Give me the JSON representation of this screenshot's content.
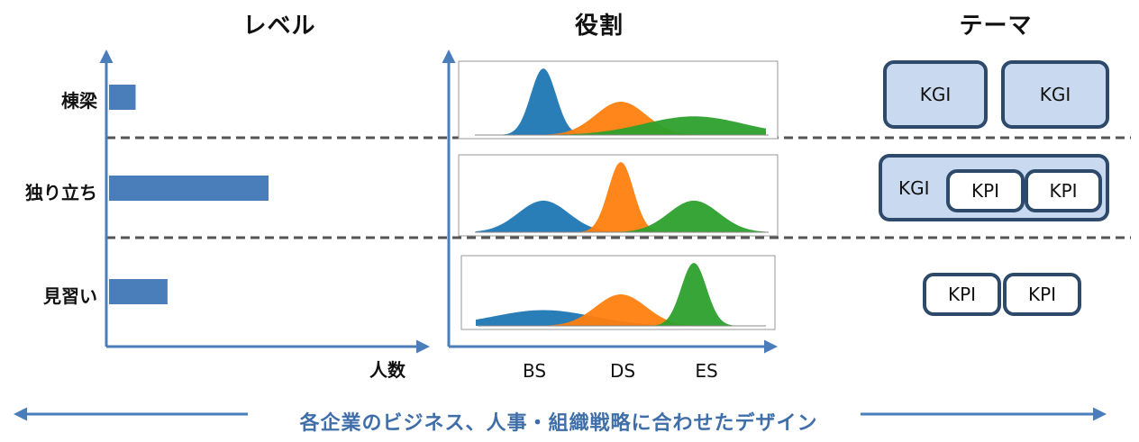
{
  "headings": {
    "level": "レベル",
    "role": "役割",
    "theme": "テーマ"
  },
  "levels": [
    {
      "label": "棟梁",
      "value": 1
    },
    {
      "label": "独り立ち",
      "value": 6
    },
    {
      "label": "見習い",
      "value": 2.2
    }
  ],
  "level_xaxis_label": "人数",
  "roles": [
    "BS",
    "DS",
    "ES"
  ],
  "role_colors": {
    "BS": "#1f77b4",
    "DS": "#ff7f0e",
    "ES": "#2ca02c"
  },
  "theme": {
    "row1": [
      "KGI",
      "KGI"
    ],
    "row2": {
      "outer": "KGI",
      "inner": [
        "KPI",
        "KPI"
      ]
    },
    "row3": [
      "KPI",
      "KPI"
    ]
  },
  "bottom_text": "各企業のビジネス、人事・組織戦略に合わせたデザイン",
  "colors": {
    "axis": "#4a7ebb",
    "bar": "#4a7ebb",
    "box_border": "#2e4a6b",
    "box_fill": "#c9daf0",
    "dashed": "#555555"
  },
  "chart_data": [
    {
      "type": "bar",
      "orientation": "horizontal",
      "categories": [
        "棟梁",
        "独り立ち",
        "見習い"
      ],
      "values": [
        1,
        6,
        2.2
      ],
      "xlabel": "人数",
      "title": "レベル"
    },
    {
      "type": "area",
      "title": "役割",
      "panel": "棟梁",
      "x": [
        "BS",
        "DS",
        "ES"
      ],
      "series": [
        {
          "name": "BS",
          "mean": "BS",
          "peak": 1.0,
          "spread": "narrow"
        },
        {
          "name": "DS",
          "mean": "DS",
          "peak": 0.5,
          "spread": "medium"
        },
        {
          "name": "ES",
          "mean": "ES",
          "peak": 0.28,
          "spread": "wide"
        }
      ]
    },
    {
      "type": "area",
      "panel": "独り立ち",
      "x": [
        "BS",
        "DS",
        "ES"
      ],
      "series": [
        {
          "name": "BS",
          "mean": "BS",
          "peak": 0.45,
          "spread": "medium"
        },
        {
          "name": "DS",
          "mean": "DS",
          "peak": 1.0,
          "spread": "narrow"
        },
        {
          "name": "ES",
          "mean": "ES",
          "peak": 0.45,
          "spread": "medium"
        }
      ]
    },
    {
      "type": "area",
      "panel": "見習い",
      "x": [
        "BS",
        "DS",
        "ES"
      ],
      "series": [
        {
          "name": "BS",
          "mean": "BS",
          "peak": 0.25,
          "spread": "wide"
        },
        {
          "name": "DS",
          "mean": "DS",
          "peak": 0.5,
          "spread": "medium"
        },
        {
          "name": "ES",
          "mean": "ES",
          "peak": 1.0,
          "spread": "narrow"
        }
      ]
    }
  ]
}
